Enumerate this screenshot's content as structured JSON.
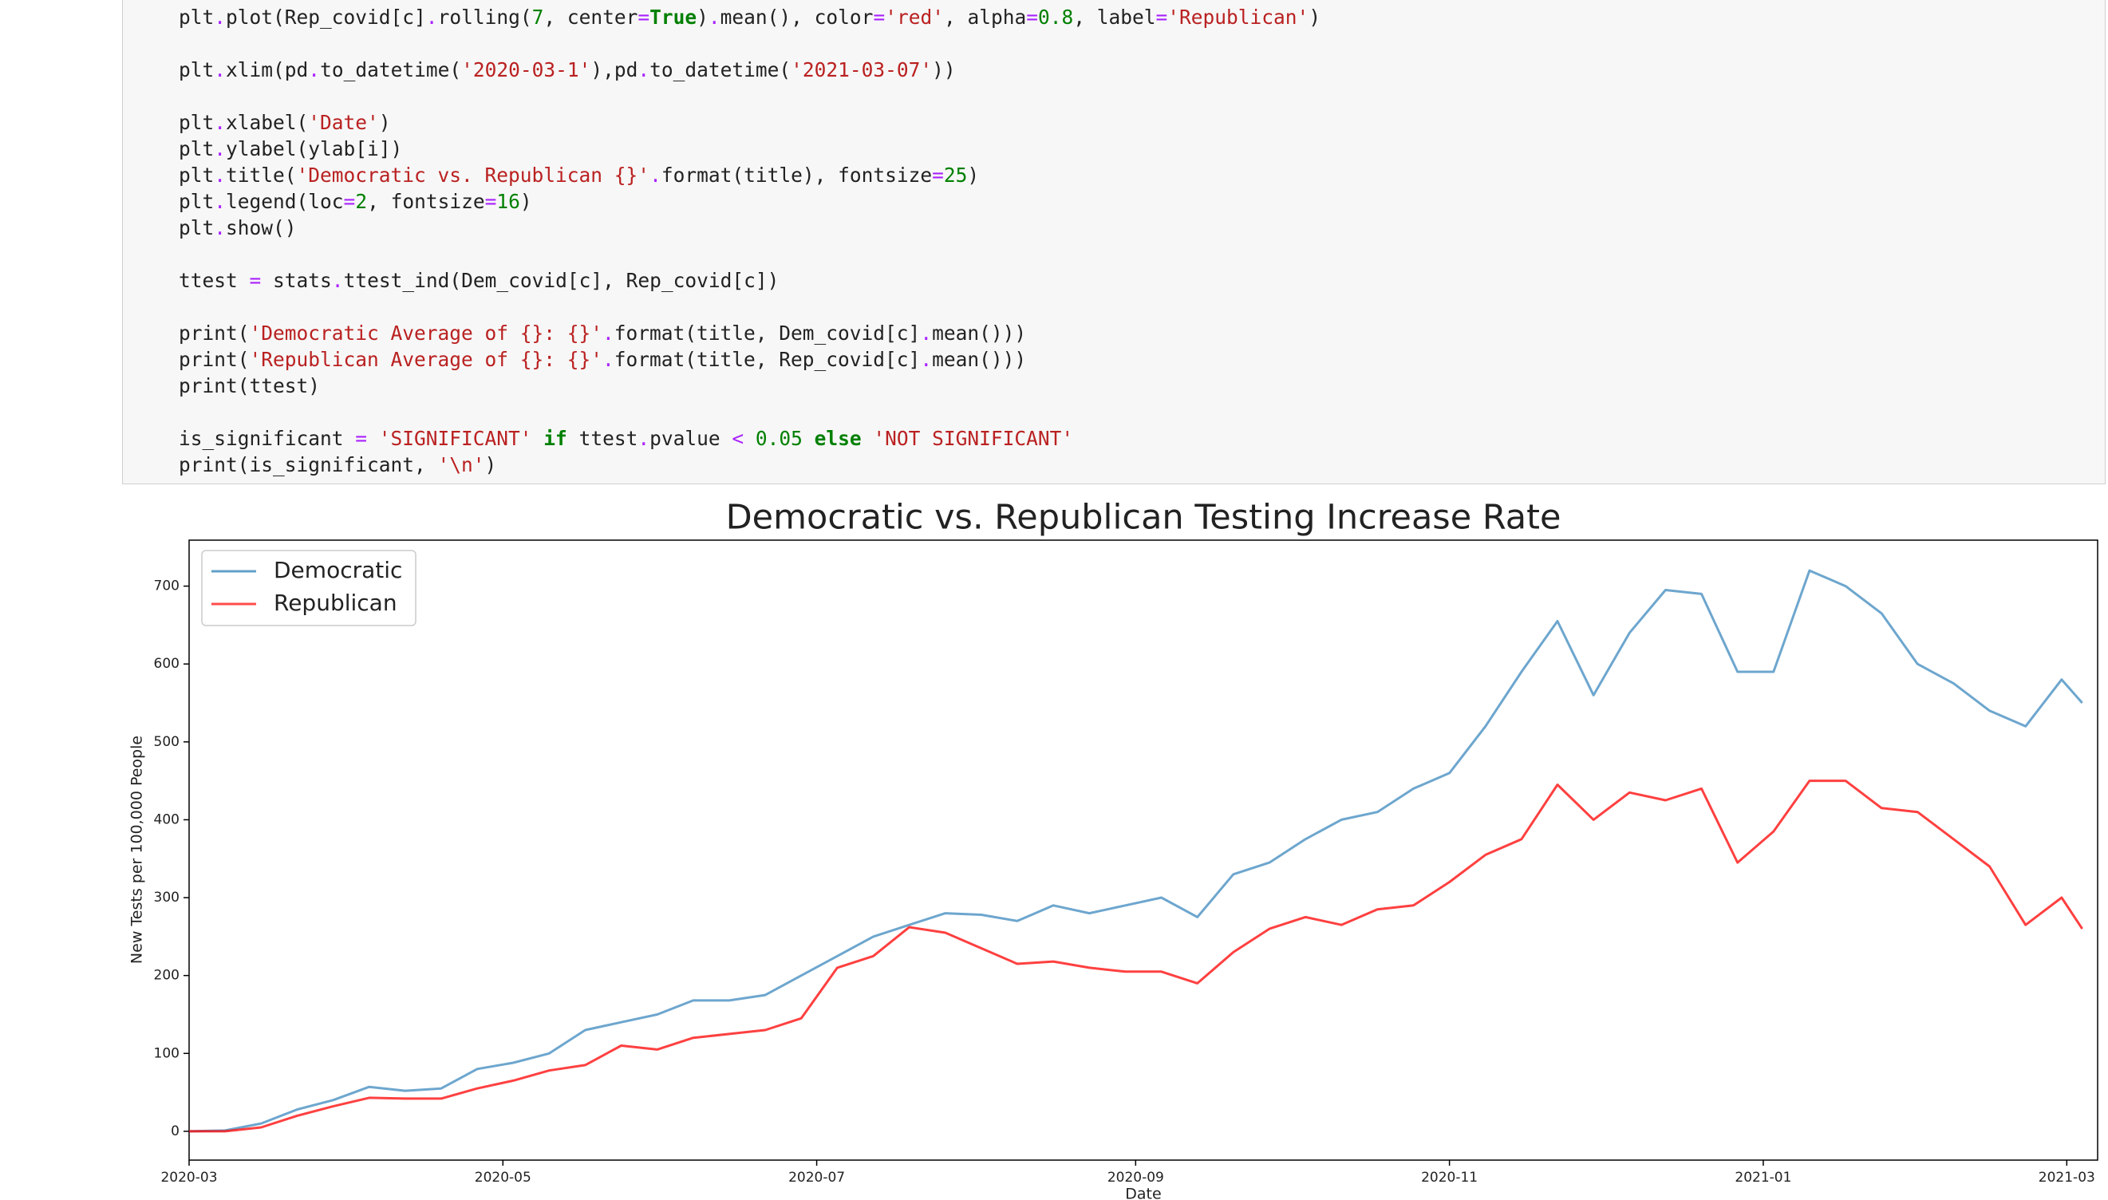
{
  "code": {
    "lines": [
      [
        [
          "plt",
          "n"
        ],
        [
          ".",
          "o"
        ],
        [
          "plot(Rep_covid[c]",
          "n"
        ],
        [
          ".",
          "o"
        ],
        [
          "rolling(",
          "n"
        ],
        [
          "7",
          "d"
        ],
        [
          ", center",
          "n"
        ],
        [
          "=",
          "o"
        ],
        [
          "True",
          "k"
        ],
        [
          ")",
          "n"
        ],
        [
          ".",
          "o"
        ],
        [
          "mean(), color",
          "n"
        ],
        [
          "=",
          "o"
        ],
        [
          "'red'",
          "s"
        ],
        [
          ", alpha",
          "n"
        ],
        [
          "=",
          "o"
        ],
        [
          "0.8",
          "d"
        ],
        [
          ", label",
          "n"
        ],
        [
          "=",
          "o"
        ],
        [
          "'Republican'",
          "s"
        ],
        [
          ")",
          "n"
        ]
      ],
      [],
      [
        [
          "plt",
          "n"
        ],
        [
          ".",
          "o"
        ],
        [
          "xlim(pd",
          "n"
        ],
        [
          ".",
          "o"
        ],
        [
          "to_datetime(",
          "n"
        ],
        [
          "'2020-03-1'",
          "s"
        ],
        [
          "),pd",
          "n"
        ],
        [
          ".",
          "o"
        ],
        [
          "to_datetime(",
          "n"
        ],
        [
          "'2021-03-07'",
          "s"
        ],
        [
          "))",
          "n"
        ]
      ],
      [],
      [
        [
          "plt",
          "n"
        ],
        [
          ".",
          "o"
        ],
        [
          "xlabel(",
          "n"
        ],
        [
          "'Date'",
          "s"
        ],
        [
          ")",
          "n"
        ]
      ],
      [
        [
          "plt",
          "n"
        ],
        [
          ".",
          "o"
        ],
        [
          "ylabel(ylab[i])",
          "n"
        ]
      ],
      [
        [
          "plt",
          "n"
        ],
        [
          ".",
          "o"
        ],
        [
          "title(",
          "n"
        ],
        [
          "'Democratic vs. Republican {}'",
          "s"
        ],
        [
          ".",
          "o"
        ],
        [
          "format(title), fontsize",
          "n"
        ],
        [
          "=",
          "o"
        ],
        [
          "25",
          "d"
        ],
        [
          ")",
          "n"
        ]
      ],
      [
        [
          "plt",
          "n"
        ],
        [
          ".",
          "o"
        ],
        [
          "legend(loc",
          "n"
        ],
        [
          "=",
          "o"
        ],
        [
          "2",
          "d"
        ],
        [
          ", fontsize",
          "n"
        ],
        [
          "=",
          "o"
        ],
        [
          "16",
          "d"
        ],
        [
          ")",
          "n"
        ]
      ],
      [
        [
          "plt",
          "n"
        ],
        [
          ".",
          "o"
        ],
        [
          "show()",
          "n"
        ]
      ],
      [],
      [
        [
          "ttest ",
          "n"
        ],
        [
          "=",
          "o"
        ],
        [
          " stats",
          "n"
        ],
        [
          ".",
          "o"
        ],
        [
          "ttest_ind(Dem_covid[c], Rep_covid[c])",
          "n"
        ]
      ],
      [],
      [
        [
          "print(",
          "n"
        ],
        [
          "'Democratic Average of {}: {}'",
          "s"
        ],
        [
          ".",
          "o"
        ],
        [
          "format(title, Dem_covid[c]",
          "n"
        ],
        [
          ".",
          "o"
        ],
        [
          "mean()))",
          "n"
        ]
      ],
      [
        [
          "print(",
          "n"
        ],
        [
          "'Republican Average of {}: {}'",
          "s"
        ],
        [
          ".",
          "o"
        ],
        [
          "format(title, Rep_covid[c]",
          "n"
        ],
        [
          ".",
          "o"
        ],
        [
          "mean()))",
          "n"
        ]
      ],
      [
        [
          "print(ttest)",
          "n"
        ]
      ],
      [],
      [
        [
          "is_significant ",
          "n"
        ],
        [
          "=",
          "o"
        ],
        [
          " 'SIGNIFICANT' ",
          "s"
        ],
        [
          "if",
          "k"
        ],
        [
          " ttest",
          "n"
        ],
        [
          ".",
          "o"
        ],
        [
          "pvalue ",
          "n"
        ],
        [
          "<",
          "o"
        ],
        [
          " 0.05 ",
          "d"
        ],
        [
          "else",
          "k"
        ],
        [
          " 'NOT SIGNIFICANT'",
          "s"
        ]
      ],
      [
        [
          "print(is_significant, ",
          "n"
        ],
        [
          "'\\n'",
          "s"
        ],
        [
          ")",
          "n"
        ]
      ]
    ]
  },
  "chart_data": {
    "type": "line",
    "title": "Democratic vs. Republican Testing Increase Rate",
    "xlabel": "Date",
    "ylabel": "New Tests per 100,000 People",
    "x": [
      "2020-03-01",
      "2020-03-08",
      "2020-03-15",
      "2020-03-22",
      "2020-03-29",
      "2020-04-05",
      "2020-04-12",
      "2020-04-19",
      "2020-04-26",
      "2020-05-03",
      "2020-05-10",
      "2020-05-17",
      "2020-05-24",
      "2020-05-31",
      "2020-06-07",
      "2020-06-14",
      "2020-06-21",
      "2020-06-28",
      "2020-07-05",
      "2020-07-12",
      "2020-07-19",
      "2020-07-26",
      "2020-08-02",
      "2020-08-09",
      "2020-08-16",
      "2020-08-23",
      "2020-08-30",
      "2020-09-06",
      "2020-09-13",
      "2020-09-20",
      "2020-09-27",
      "2020-10-04",
      "2020-10-11",
      "2020-10-18",
      "2020-10-25",
      "2020-11-01",
      "2020-11-08",
      "2020-11-15",
      "2020-11-22",
      "2020-11-29",
      "2020-12-06",
      "2020-12-13",
      "2020-12-20",
      "2020-12-27",
      "2021-01-03",
      "2021-01-10",
      "2021-01-17",
      "2021-01-24",
      "2021-01-31",
      "2021-02-07",
      "2021-02-14",
      "2021-02-21",
      "2021-02-28",
      "2021-03-04"
    ],
    "series": [
      {
        "name": "Democratic",
        "color": "#1f77b4",
        "values": [
          0,
          1,
          10,
          28,
          40,
          57,
          52,
          55,
          80,
          88,
          100,
          130,
          140,
          150,
          168,
          168,
          175,
          200,
          225,
          250,
          265,
          280,
          278,
          270,
          290,
          280,
          290,
          300,
          275,
          330,
          345,
          375,
          400,
          410,
          440,
          460,
          520,
          590,
          655,
          560,
          640,
          695,
          690,
          590,
          590,
          720,
          700,
          665,
          600,
          575,
          540,
          520,
          580,
          550
        ]
      },
      {
        "name": "Republican",
        "color": "red",
        "values": [
          0,
          0,
          5,
          20,
          32,
          43,
          42,
          42,
          55,
          65,
          78,
          85,
          110,
          105,
          120,
          125,
          130,
          145,
          210,
          225,
          262,
          255,
          235,
          215,
          218,
          210,
          205,
          205,
          190,
          230,
          260,
          275,
          265,
          285,
          290,
          320,
          355,
          375,
          445,
          400,
          435,
          425,
          440,
          345,
          385,
          450,
          450,
          415,
          410,
          375,
          340,
          265,
          300,
          260
        ]
      }
    ],
    "xlim": [
      "2020-03-01",
      "2021-03-07"
    ],
    "xticks": [
      {
        "value": "2020-03-01",
        "label": "2020-03"
      },
      {
        "value": "2020-05-01",
        "label": "2020-05"
      },
      {
        "value": "2020-07-01",
        "label": "2020-07"
      },
      {
        "value": "2020-09-01",
        "label": "2020-09"
      },
      {
        "value": "2020-11-01",
        "label": "2020-11"
      },
      {
        "value": "2021-01-01",
        "label": "2021-01"
      },
      {
        "value": "2021-03-01",
        "label": "2021-03"
      }
    ],
    "ylim": [
      -37,
      759
    ],
    "yticks": [
      0,
      100,
      200,
      300,
      400,
      500,
      600,
      700
    ],
    "grid": false,
    "legend": "upper left"
  }
}
